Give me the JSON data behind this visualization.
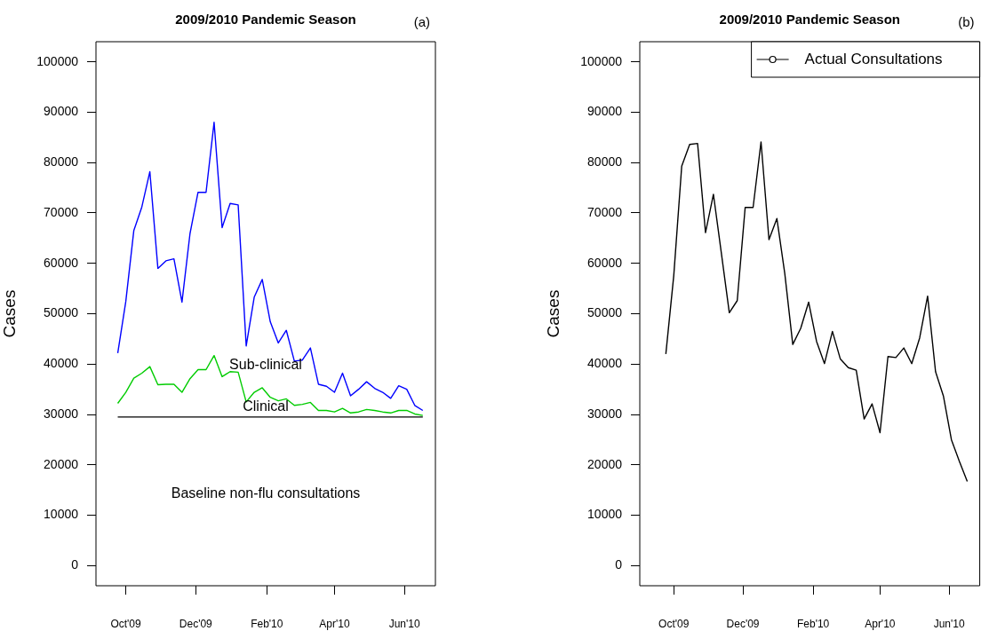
{
  "chart_data": [
    {
      "type": "line",
      "title": "2009/2010 Pandemic Season",
      "ylabel": "Cases",
      "x": [
        "2009-09-24",
        "2009-10-01",
        "2009-10-08",
        "2009-10-15",
        "2009-10-22",
        "2009-10-29",
        "2009-11-05",
        "2009-11-12",
        "2009-11-19",
        "2009-11-26",
        "2009-12-03",
        "2009-12-10",
        "2009-12-17",
        "2009-12-24",
        "2009-12-31",
        "2010-01-07",
        "2010-01-14",
        "2010-01-21",
        "2010-01-28",
        "2010-02-04",
        "2010-02-11",
        "2010-02-18",
        "2010-02-25",
        "2010-03-04",
        "2010-03-11",
        "2010-03-18",
        "2010-03-25",
        "2010-04-01",
        "2010-04-08",
        "2010-04-15",
        "2010-04-22",
        "2010-04-29",
        "2010-05-06",
        "2010-05-13",
        "2010-05-20",
        "2010-05-27",
        "2010-06-03",
        "2010-06-10",
        "2010-06-17"
      ],
      "series": [
        {
          "color": "#0000ff",
          "values": [
            42200,
            52400,
            66500,
            71200,
            78200,
            59000,
            60500,
            60900,
            52300,
            65900,
            74100,
            74100,
            88000,
            67100,
            71900,
            71600,
            43600,
            53300,
            56800,
            48400,
            44200,
            46700,
            40600,
            40800,
            43200,
            36000,
            35600,
            34400,
            38200,
            33700,
            35000,
            36500,
            35200,
            34400,
            33200,
            35700,
            35000,
            31800,
            30800
          ]
        },
        {
          "color": "#00cc00",
          "values": [
            32200,
            34400,
            37200,
            38200,
            39500,
            35900,
            36000,
            36000,
            34400,
            37100,
            38900,
            38900,
            41700,
            37500,
            38500,
            38400,
            32500,
            34400,
            35300,
            33400,
            32700,
            33100,
            31800,
            32000,
            32400,
            30800,
            30800,
            30500,
            31200,
            30300,
            30500,
            31000,
            30800,
            30500,
            30300,
            30800,
            30800,
            30100,
            29800
          ]
        },
        {
          "color": "#000000",
          "values": [
            29500,
            29500,
            29500,
            29500,
            29500,
            29500,
            29500,
            29500,
            29500,
            29500,
            29500,
            29500,
            29500,
            29500,
            29500,
            29500,
            29500,
            29500,
            29500,
            29500,
            29500,
            29500,
            29500,
            29500,
            29500,
            29500,
            29500,
            29500,
            29500,
            29500,
            29500,
            29500,
            29500,
            29500,
            29500,
            29500,
            29500,
            29500,
            29500
          ]
        }
      ],
      "xlim": [
        "2009-09-05",
        "2010-06-28"
      ],
      "xticks": [
        {
          "value": "2009-10-01",
          "label": "Oct'09"
        },
        {
          "value": "2009-12-01",
          "label": "Dec'09"
        },
        {
          "value": "2010-02-01",
          "label": "Feb'10"
        },
        {
          "value": "2010-04-01",
          "label": "Apr'10"
        },
        {
          "value": "2010-06-01",
          "label": "Jun'10"
        }
      ],
      "ylim": [
        -4000,
        104000
      ],
      "yticks": [
        0,
        10000,
        20000,
        30000,
        40000,
        50000,
        60000,
        70000,
        80000,
        90000,
        100000
      ],
      "legend": false,
      "annotations": [
        "(a)",
        "Sub-clinical",
        "Clinical",
        "Baseline non-flu consultations"
      ]
    },
    {
      "type": "line",
      "title": "2009/2010 Pandemic Season",
      "ylabel": "Cases",
      "x": [
        "2009-09-24",
        "2009-10-01",
        "2009-10-08",
        "2009-10-15",
        "2009-10-22",
        "2009-10-29",
        "2009-11-05",
        "2009-11-12",
        "2009-11-19",
        "2009-11-26",
        "2009-12-03",
        "2009-12-10",
        "2009-12-17",
        "2009-12-24",
        "2009-12-31",
        "2010-01-07",
        "2010-01-14",
        "2010-01-21",
        "2010-01-28",
        "2010-02-04",
        "2010-02-11",
        "2010-02-18",
        "2010-02-25",
        "2010-03-04",
        "2010-03-11",
        "2010-03-18",
        "2010-03-25",
        "2010-04-01",
        "2010-04-08",
        "2010-04-15",
        "2010-04-22",
        "2010-04-29",
        "2010-05-06",
        "2010-05-13",
        "2010-05-20",
        "2010-05-27",
        "2010-06-03",
        "2010-06-10",
        "2010-06-17"
      ],
      "series": [
        {
          "name": "Actual Consultations",
          "color": "#000000",
          "values": [
            42000,
            57600,
            79300,
            83600,
            83800,
            66100,
            73700,
            62000,
            50200,
            52600,
            71100,
            71100,
            84100,
            64700,
            68900,
            57900,
            43900,
            47100,
            52300,
            44500,
            40100,
            46500,
            41000,
            39300,
            38800,
            29100,
            32100,
            26400,
            41500,
            41300,
            43200,
            40100,
            45200,
            53500,
            38500,
            33600,
            25000,
            20700,
            16700
          ]
        }
      ],
      "xlim": [
        "2009-09-01",
        "2010-06-28"
      ],
      "xticks": [
        {
          "value": "2009-10-01",
          "label": "Oct'09"
        },
        {
          "value": "2009-12-01",
          "label": "Dec'09"
        },
        {
          "value": "2010-02-01",
          "label": "Feb'10"
        },
        {
          "value": "2010-04-01",
          "label": "Apr'10"
        },
        {
          "value": "2010-06-01",
          "label": "Jun'10"
        }
      ],
      "ylim": [
        -4000,
        104000
      ],
      "yticks": [
        0,
        10000,
        20000,
        30000,
        40000,
        50000,
        60000,
        70000,
        80000,
        90000,
        100000
      ],
      "legend": "top right",
      "annotations": [
        "(b)"
      ]
    }
  ]
}
